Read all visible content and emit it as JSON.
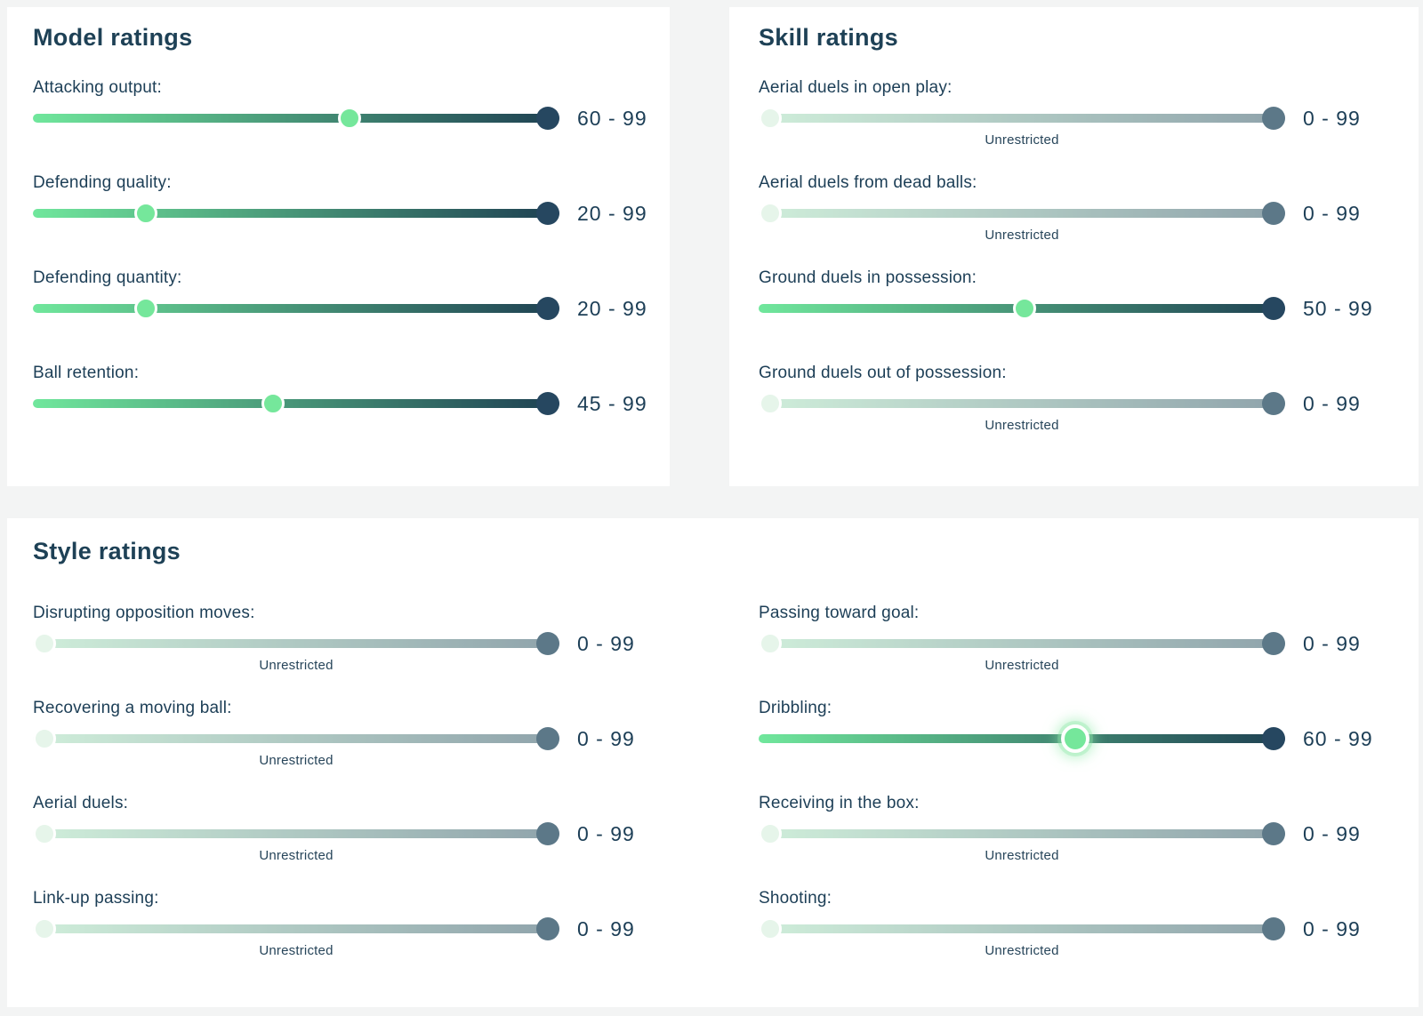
{
  "labels": {
    "unrestricted": "Unrestricted"
  },
  "colors": {
    "page_background": "#f3f4f4",
    "panel_background": "#ffffff",
    "text": "#1c3e56",
    "track_active_gradient_start": "#70e79c",
    "track_active_gradient_end": "#1e4052",
    "track_inactive_gradient_start": "#cfeeda",
    "track_inactive_gradient_end": "#8fa3ab",
    "min_handle_active": "#75e79b",
    "min_handle_inactive": "#e6f5ea",
    "max_handle_active": "#264760",
    "max_handle_inactive": "#5c7888"
  },
  "slider_scale": {
    "min": 0,
    "max": 99
  },
  "panels": {
    "model": {
      "title": "Model ratings",
      "sliders": [
        {
          "label": "Attacking output:",
          "min": 60,
          "max": 99,
          "range_text": "60 - 99",
          "restricted": true,
          "highlighted": false,
          "unrestricted": false
        },
        {
          "label": "Defending quality:",
          "min": 20,
          "max": 99,
          "range_text": "20 - 99",
          "restricted": true,
          "highlighted": false,
          "unrestricted": false
        },
        {
          "label": "Defending quantity:",
          "min": 20,
          "max": 99,
          "range_text": "20 - 99",
          "restricted": true,
          "highlighted": false,
          "unrestricted": false
        },
        {
          "label": "Ball retention:",
          "min": 45,
          "max": 99,
          "range_text": "45 - 99",
          "restricted": true,
          "highlighted": false,
          "unrestricted": false
        }
      ]
    },
    "skill": {
      "title": "Skill ratings",
      "sliders": [
        {
          "label": "Aerial duels in open play:",
          "min": 0,
          "max": 99,
          "range_text": "0 - 99",
          "restricted": false,
          "highlighted": false,
          "unrestricted": true
        },
        {
          "label": "Aerial duels from dead balls:",
          "min": 0,
          "max": 99,
          "range_text": "0 - 99",
          "restricted": false,
          "highlighted": false,
          "unrestricted": true
        },
        {
          "label": "Ground duels in possession:",
          "min": 50,
          "max": 99,
          "range_text": "50 - 99",
          "restricted": true,
          "highlighted": false,
          "unrestricted": false
        },
        {
          "label": "Ground duels out of possession:",
          "min": 0,
          "max": 99,
          "range_text": "0 - 99",
          "restricted": false,
          "highlighted": false,
          "unrestricted": true
        }
      ]
    },
    "style": {
      "title": "Style ratings",
      "left_sliders": [
        {
          "label": "Disrupting opposition moves:",
          "min": 0,
          "max": 99,
          "range_text": "0 - 99",
          "restricted": false,
          "highlighted": false,
          "unrestricted": true
        },
        {
          "label": "Recovering a moving ball:",
          "min": 0,
          "max": 99,
          "range_text": "0 - 99",
          "restricted": false,
          "highlighted": false,
          "unrestricted": true
        },
        {
          "label": "Aerial duels:",
          "min": 0,
          "max": 99,
          "range_text": "0 - 99",
          "restricted": false,
          "highlighted": false,
          "unrestricted": true
        },
        {
          "label": "Link-up passing:",
          "min": 0,
          "max": 99,
          "range_text": "0 - 99",
          "restricted": false,
          "highlighted": false,
          "unrestricted": true
        }
      ],
      "right_sliders": [
        {
          "label": "Passing toward goal:",
          "min": 0,
          "max": 99,
          "range_text": "0 - 99",
          "restricted": false,
          "highlighted": false,
          "unrestricted": true
        },
        {
          "label": "Dribbling:",
          "min": 60,
          "max": 99,
          "range_text": "60 - 99",
          "restricted": true,
          "highlighted": true,
          "unrestricted": false
        },
        {
          "label": "Receiving in the box:",
          "min": 0,
          "max": 99,
          "range_text": "0 - 99",
          "restricted": false,
          "highlighted": false,
          "unrestricted": true
        },
        {
          "label": "Shooting:",
          "min": 0,
          "max": 99,
          "range_text": "0 - 99",
          "restricted": false,
          "highlighted": false,
          "unrestricted": true
        }
      ]
    }
  }
}
